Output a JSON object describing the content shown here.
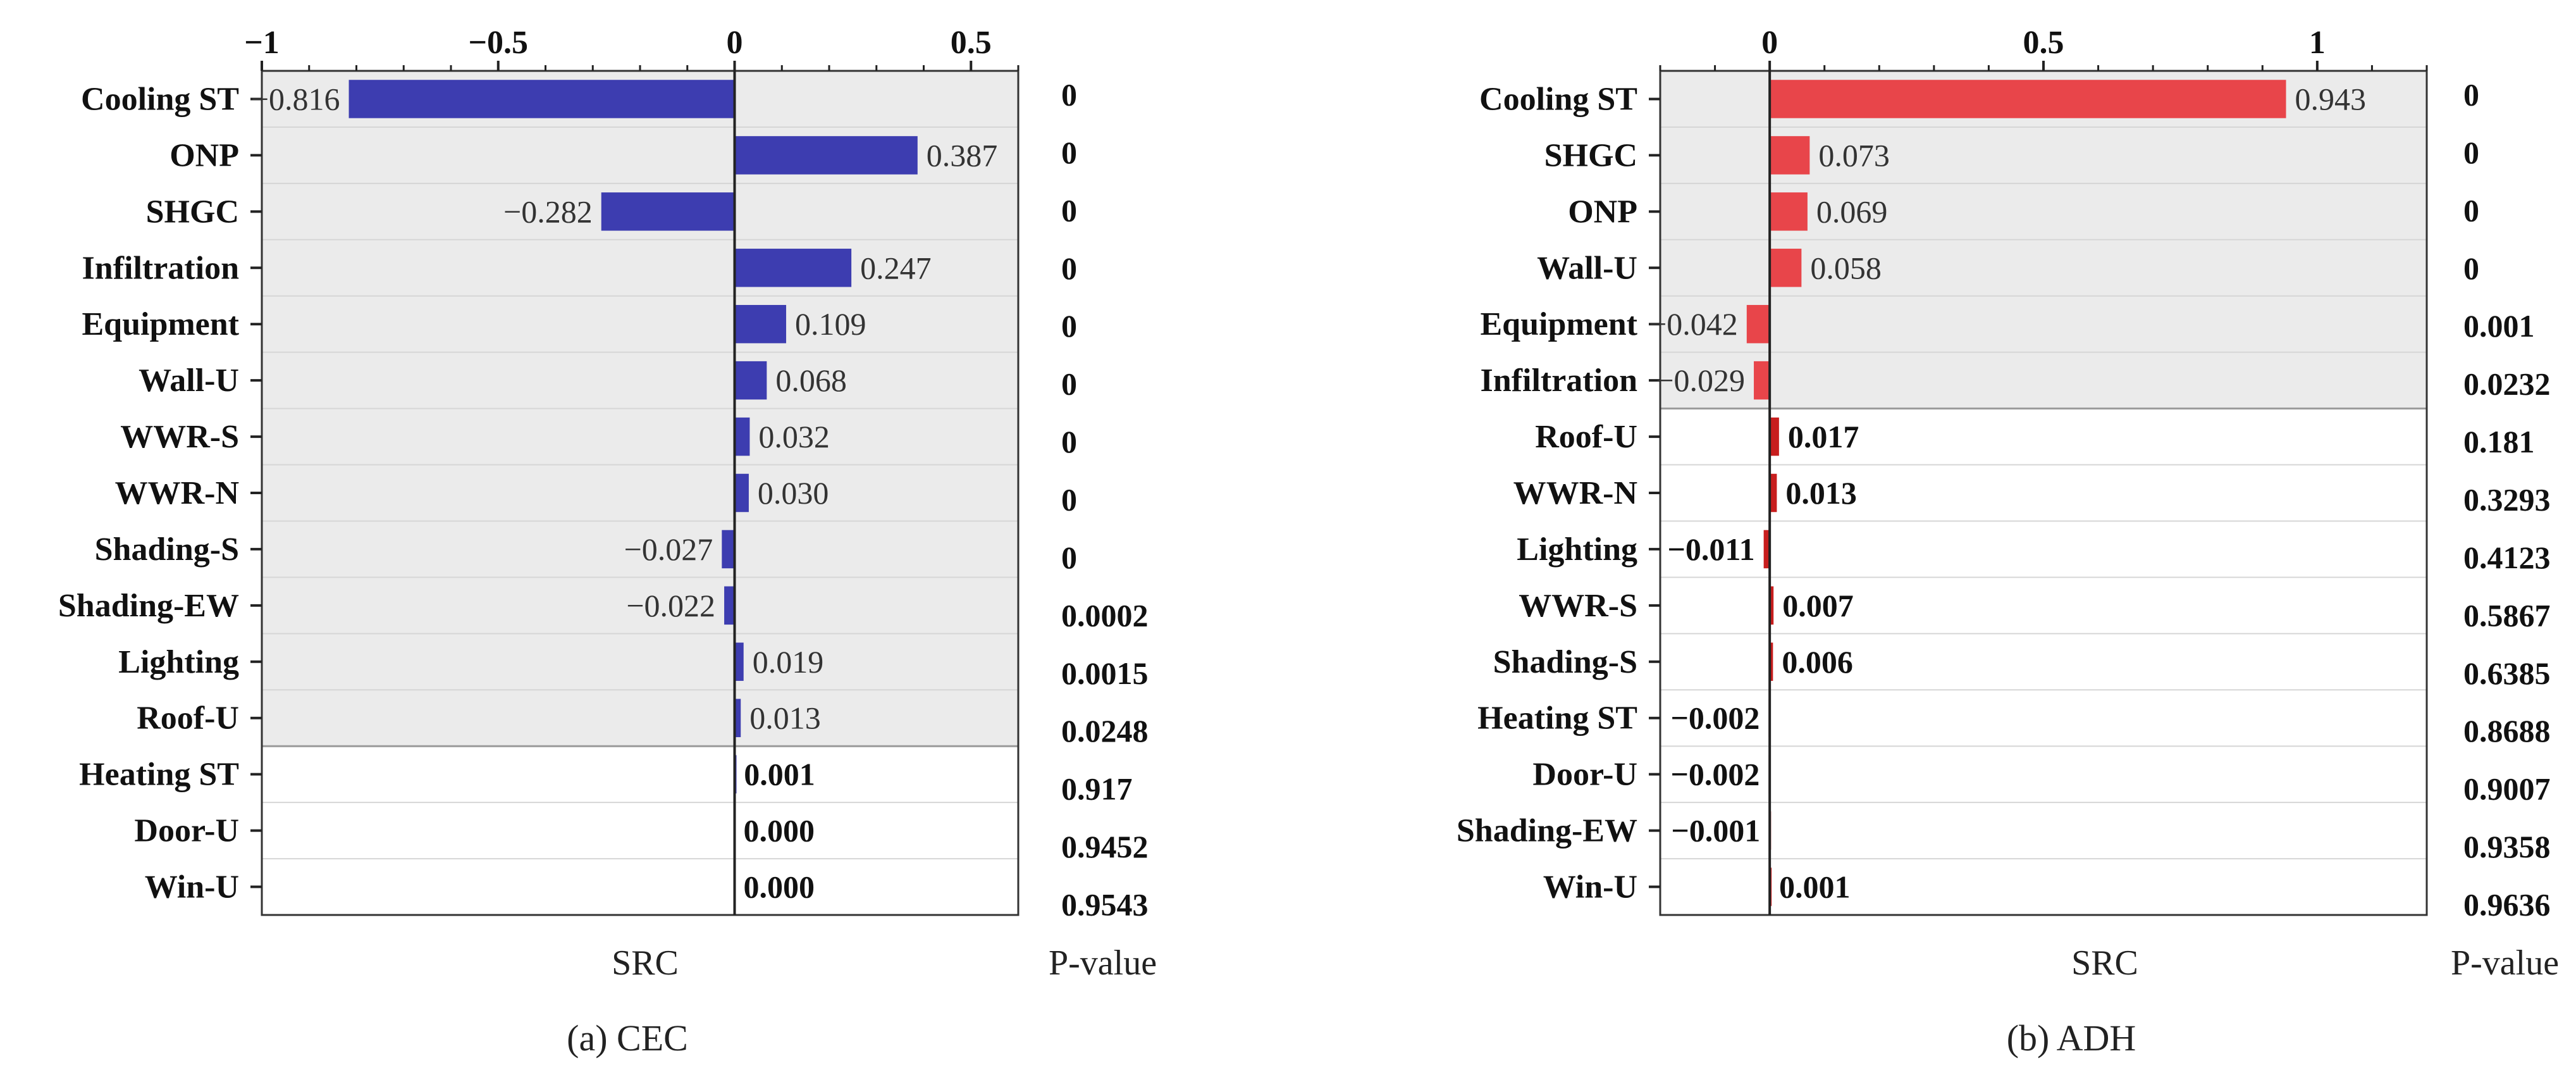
{
  "chart_data": [
    {
      "type": "bar",
      "orientation": "horizontal",
      "caption": "(a)  CEC",
      "xlabel": "SRC",
      "pvalue_label": "P-value",
      "xlim": [
        -1,
        0.6
      ],
      "xticks": [
        -1,
        -0.5,
        0,
        0.5
      ],
      "xtick_labels": [
        "−1",
        "−0.5",
        "0",
        "0.5"
      ],
      "bar_color": "#3d3db0",
      "significant_count": 12,
      "categories": [
        "Cooling ST",
        "ONP",
        "SHGC",
        "Infiltration",
        "Equipment",
        "Wall-U",
        "WWR-S",
        "WWR-N",
        "Shading-S",
        "Shading-EW",
        "Lighting",
        "Roof-U",
        "Heating ST",
        "Door-U",
        "Win-U"
      ],
      "values": [
        -0.816,
        0.387,
        -0.282,
        0.247,
        0.109,
        0.068,
        0.032,
        0.03,
        -0.027,
        -0.022,
        0.019,
        0.013,
        0.001,
        0.0,
        0.0
      ],
      "value_labels": [
        "−0.816",
        "0.387",
        "−0.282",
        "0.247",
        "0.109",
        "0.068",
        "0.032",
        "0.030",
        "−0.027",
        "−0.022",
        "0.019",
        "0.013",
        "0.001",
        "0.000",
        "0.000"
      ],
      "p_values": [
        "0",
        "0",
        "0",
        "0",
        "0",
        "0",
        "0",
        "0",
        "0",
        "0.0002",
        "0.0015",
        "0.0248",
        "0.917",
        "0.9452",
        "0.9543"
      ]
    },
    {
      "type": "bar",
      "orientation": "horizontal",
      "caption": "(b)  ADH",
      "xlabel": "SRC",
      "pvalue_label": "P-value",
      "xlim": [
        -0.2,
        1.2
      ],
      "xticks": [
        0,
        0.5,
        1
      ],
      "xtick_labels": [
        "0",
        "0.5",
        "1"
      ],
      "bar_color": "#e8454a",
      "bar_color_nonsig": "#c81e1e",
      "significant_count": 6,
      "categories": [
        "Cooling ST",
        "SHGC",
        "ONP",
        "Wall-U",
        "Equipment",
        "Infiltration",
        "Roof-U",
        "WWR-N",
        "Lighting",
        "WWR-S",
        "Shading-S",
        "Heating ST",
        "Door-U",
        "Shading-EW",
        "Win-U"
      ],
      "values": [
        0.943,
        0.073,
        0.069,
        0.058,
        -0.042,
        -0.029,
        0.017,
        0.013,
        -0.011,
        0.007,
        0.006,
        -0.002,
        -0.002,
        -0.001,
        0.001
      ],
      "value_labels": [
        "0.943",
        "0.073",
        "0.069",
        "0.058",
        "−0.042",
        "−0.029",
        "0.017",
        "0.013",
        "−0.011",
        "0.007",
        "0.006",
        "−0.002",
        "−0.002",
        "−0.001",
        "0.001"
      ],
      "p_values": [
        "0",
        "0",
        "0",
        "0",
        "0.001",
        "0.0232",
        "0.181",
        "0.3293",
        "0.4123",
        "0.5867",
        "0.6385",
        "0.8688",
        "0.9007",
        "0.9358",
        "0.9636"
      ]
    }
  ]
}
